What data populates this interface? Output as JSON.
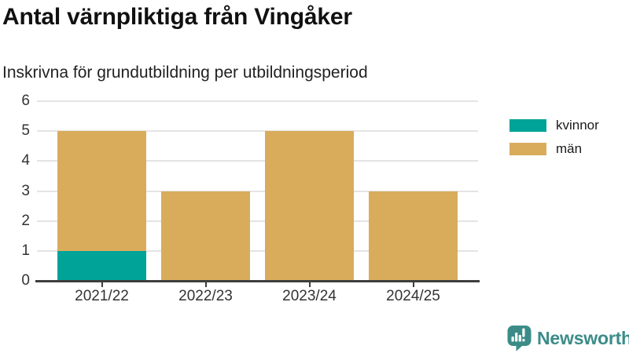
{
  "chart_data": {
    "type": "bar",
    "stacked": true,
    "title": "Antal värnpliktiga från Vingåker",
    "subtitle": "Inskrivna för grundutbildning per utbildningsperiod",
    "categories": [
      "2021/22",
      "2022/23",
      "2023/24",
      "2024/25"
    ],
    "series": [
      {
        "name": "kvinnor",
        "color": "#00a398",
        "values": [
          1,
          0,
          0,
          0
        ]
      },
      {
        "name": "män",
        "color": "#d9ac5c",
        "values": [
          4,
          3,
          5,
          3
        ]
      }
    ],
    "totals": [
      5,
      3,
      5,
      3
    ],
    "ylim": [
      0,
      6
    ],
    "yticks": [
      0,
      1,
      2,
      3,
      4,
      5,
      6
    ],
    "xlabel": "",
    "ylabel": "",
    "grid": true,
    "legend_position": "right"
  },
  "branding": {
    "logo_text": "Newsworthy",
    "logo_color": "#3b8c89",
    "logo_icon": "bar-chart-speech-bubble-icon"
  }
}
